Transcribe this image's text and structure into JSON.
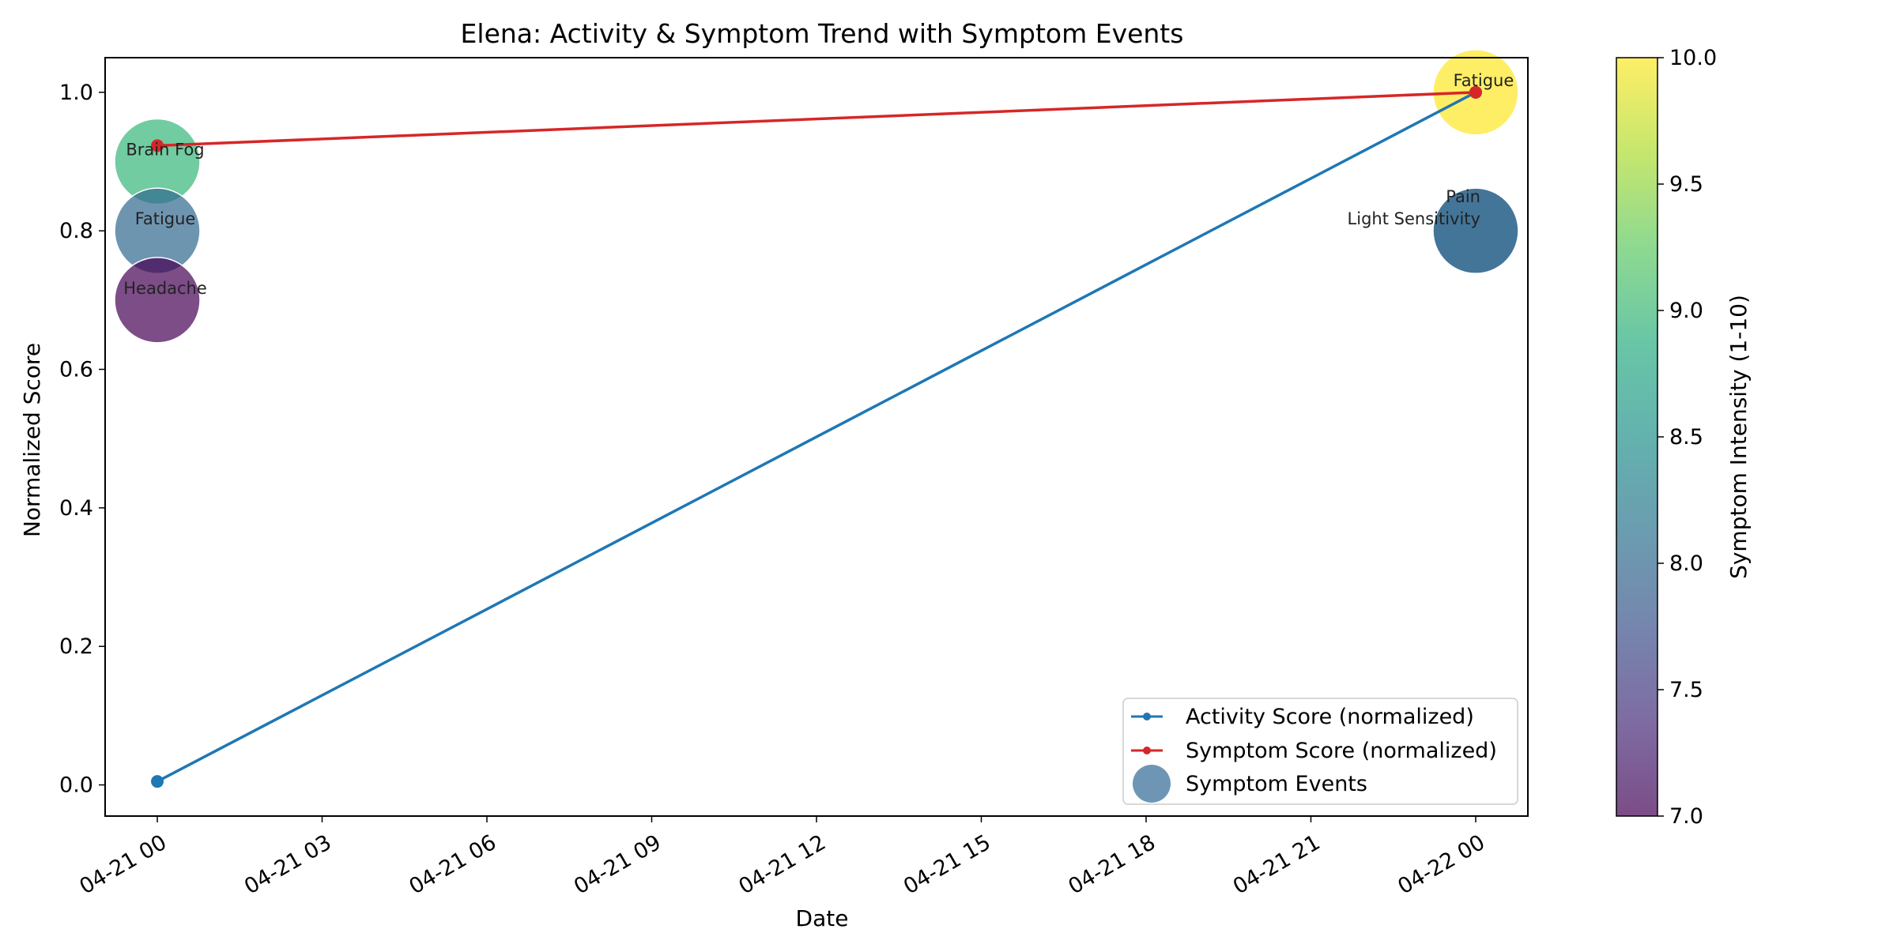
{
  "chart_data": {
    "type": "line",
    "title": "Elena: Activity & Symptom Trend with Symptom Events",
    "xlabel": "Date",
    "ylabel": "Normalized Score",
    "xlim": [
      "2024-04-20 23:03",
      "2024-04-22 00:57"
    ],
    "ylim": [
      -0.045,
      1.05
    ],
    "x_ticks": [
      {
        "value": "2024-04-21 00:00",
        "label": "04-21 00"
      },
      {
        "value": "2024-04-21 03:00",
        "label": "04-21 03"
      },
      {
        "value": "2024-04-21 06:00",
        "label": "04-21 06"
      },
      {
        "value": "2024-04-21 09:00",
        "label": "04-21 09"
      },
      {
        "value": "2024-04-21 12:00",
        "label": "04-21 12"
      },
      {
        "value": "2024-04-21 15:00",
        "label": "04-21 15"
      },
      {
        "value": "2024-04-21 18:00",
        "label": "04-21 18"
      },
      {
        "value": "2024-04-21 21:00",
        "label": "04-21 21"
      },
      {
        "value": "2024-04-22 00:00",
        "label": "04-22 00"
      }
    ],
    "y_ticks": [
      {
        "value": 0.0,
        "label": "0.0"
      },
      {
        "value": 0.2,
        "label": "0.2"
      },
      {
        "value": 0.4,
        "label": "0.4"
      },
      {
        "value": 0.6,
        "label": "0.6"
      },
      {
        "value": 0.8,
        "label": "0.8"
      },
      {
        "value": 1.0,
        "label": "1.0"
      }
    ],
    "series": [
      {
        "name": "Activity Score (normalized)",
        "color": "#1f77b4",
        "points": [
          {
            "x": "2024-04-21 00:00",
            "y": 0.005
          },
          {
            "x": "2024-04-22 00:00",
            "y": 1.0
          }
        ]
      },
      {
        "name": "Symptom Score (normalized)",
        "color": "#d62728",
        "points": [
          {
            "x": "2024-04-21 00:00",
            "y": 0.923
          },
          {
            "x": "2024-04-22 00:00",
            "y": 1.0
          }
        ]
      }
    ],
    "symptom_events": {
      "name": "Symptom Events",
      "legend_color": "#6e96b4",
      "points": [
        {
          "x": "2024-04-21 00:00",
          "y": 0.9,
          "intensity": 9.0,
          "label": "Brain Fog"
        },
        {
          "x": "2024-04-21 00:00",
          "y": 0.8,
          "intensity": 8.0,
          "label": "Fatigue"
        },
        {
          "x": "2024-04-21 00:00",
          "y": 0.7,
          "intensity": 7.0,
          "label": "Headache"
        },
        {
          "x": "2024-04-22 00:00",
          "y": 1.0,
          "intensity": 10.0,
          "label": "Fatigue"
        },
        {
          "x": "2024-04-22 00:00",
          "y": 0.8,
          "intensity": 8.0,
          "label": "Pain"
        },
        {
          "x": "2024-04-22 00:00",
          "y": 0.8,
          "intensity": 8.0,
          "label": "Light Sensitivity"
        }
      ]
    },
    "colorbar": {
      "label": "Symptom Intensity (1-10)",
      "range": [
        7.0,
        10.0
      ],
      "colormap": "viridis",
      "ticks": [
        {
          "value": 7.0,
          "label": "7.0"
        },
        {
          "value": 7.5,
          "label": "7.5"
        },
        {
          "value": 8.0,
          "label": "8.0"
        },
        {
          "value": 8.5,
          "label": "8.5"
        },
        {
          "value": 9.0,
          "label": "9.0"
        },
        {
          "value": 9.5,
          "label": "9.5"
        },
        {
          "value": 10.0,
          "label": "10.0"
        }
      ]
    },
    "legend": {
      "position": "lower right",
      "entries": [
        "Activity Score (normalized)",
        "Symptom Score (normalized)",
        "Symptom Events"
      ]
    },
    "grid": false
  }
}
